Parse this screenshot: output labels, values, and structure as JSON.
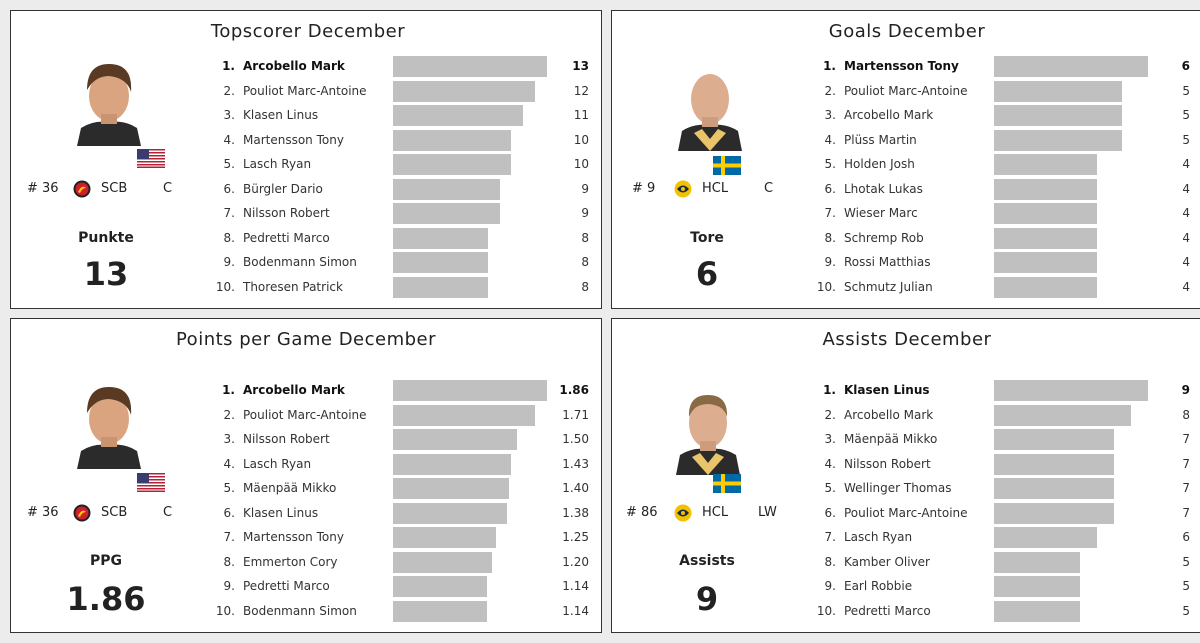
{
  "chart_data": [
    {
      "type": "bar",
      "title": "Topscorer December",
      "stat_label": "Punkte",
      "stat_value": "13",
      "player": {
        "number": "# 36",
        "team": "SCB",
        "position": "C",
        "flag": "usa-flag-icon",
        "logo": "scb-logo-icon"
      },
      "xlim": [
        0,
        13
      ],
      "categories": [
        "Arcobello Mark",
        "Pouliot Marc-Antoine",
        "Klasen Linus",
        "Martensson Tony",
        "Lasch Ryan",
        "Bürgler Dario",
        "Nilsson Robert",
        "Pedretti Marco",
        "Bodenmann Simon",
        "Thoresen Patrick"
      ],
      "ranks": [
        "1.",
        "2.",
        "3.",
        "4.",
        "5.",
        "6.",
        "7.",
        "8.",
        "9.",
        "10."
      ],
      "values": [
        13,
        12,
        11,
        10,
        10,
        9,
        9,
        8,
        8,
        8
      ],
      "value_labels": [
        "13",
        "12",
        "11",
        "10",
        "10",
        "9",
        "9",
        "8",
        "8",
        "8"
      ]
    },
    {
      "type": "bar",
      "title": "Goals December",
      "stat_label": "Tore",
      "stat_value": "6",
      "player": {
        "number": "# 9",
        "team": "HCL",
        "position": "C",
        "flag": "sweden-flag-icon",
        "logo": "hcl-logo-icon"
      },
      "xlim": [
        0,
        6
      ],
      "categories": [
        "Martensson Tony",
        "Pouliot Marc-Antoine",
        "Arcobello Mark",
        "Plüss Martin",
        "Holden Josh",
        "Lhotak Lukas",
        "Wieser Marc",
        "Schremp Rob",
        "Rossi Matthias",
        "Schmutz Julian"
      ],
      "ranks": [
        "1.",
        "2.",
        "3.",
        "4.",
        "5.",
        "6.",
        "7.",
        "8.",
        "9.",
        "10."
      ],
      "values": [
        6,
        5,
        5,
        5,
        4,
        4,
        4,
        4,
        4,
        4
      ],
      "value_labels": [
        "6",
        "5",
        "5",
        "5",
        "4",
        "4",
        "4",
        "4",
        "4",
        "4"
      ]
    },
    {
      "type": "bar",
      "title": "Points per Game December",
      "stat_label": "PPG",
      "stat_value": "1.86",
      "player": {
        "number": "# 36",
        "team": "SCB",
        "position": "C",
        "flag": "usa-flag-icon",
        "logo": "scb-logo-icon"
      },
      "xlim": [
        0,
        1.86
      ],
      "categories": [
        "Arcobello Mark",
        "Pouliot Marc-Antoine",
        "Nilsson Robert",
        "Lasch Ryan",
        "Mäenpää Mikko",
        "Klasen Linus",
        "Martensson Tony",
        "Emmerton Cory",
        "Pedretti Marco",
        "Bodenmann Simon"
      ],
      "ranks": [
        "1.",
        "2.",
        "3.",
        "4.",
        "5.",
        "6.",
        "7.",
        "8.",
        "9.",
        "10."
      ],
      "values": [
        1.86,
        1.71,
        1.5,
        1.43,
        1.4,
        1.38,
        1.25,
        1.2,
        1.14,
        1.14
      ],
      "value_labels": [
        "1.86",
        "1.71",
        "1.50",
        "1.43",
        "1.40",
        "1.38",
        "1.25",
        "1.20",
        "1.14",
        "1.14"
      ]
    },
    {
      "type": "bar",
      "title": "Assists December",
      "stat_label": "Assists",
      "stat_value": "9",
      "player": {
        "number": "# 86",
        "team": "HCL",
        "position": "LW",
        "flag": "sweden-flag-icon",
        "logo": "hcl-logo-icon"
      },
      "xlim": [
        0,
        9
      ],
      "categories": [
        "Klasen Linus",
        "Arcobello Mark",
        "Mäenpää Mikko",
        "Nilsson Robert",
        "Wellinger Thomas",
        "Pouliot Marc-Antoine",
        "Lasch Ryan",
        "Kamber Oliver",
        "Earl Robbie",
        "Pedretti Marco"
      ],
      "ranks": [
        "1.",
        "2.",
        "3.",
        "4.",
        "5.",
        "6.",
        "7.",
        "8.",
        "9.",
        "10."
      ],
      "values": [
        9,
        8,
        7,
        7,
        7,
        7,
        6,
        5,
        5,
        5
      ],
      "value_labels": [
        "9",
        "8",
        "7",
        "7",
        "7",
        "7",
        "6",
        "5",
        "5",
        "5"
      ]
    }
  ]
}
